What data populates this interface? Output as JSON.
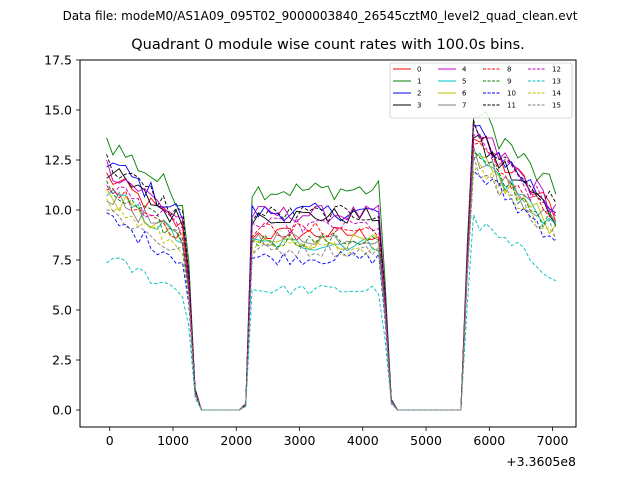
{
  "chart_data": {
    "type": "line",
    "suptitle": "Data file: modeM0/AS1A09_095T02_9000003840_26545cztM0_level2_quad_clean.evt",
    "title": "Quadrant 0 module wise count rates with 100.0s bins.",
    "xlabel": "",
    "ylabel": "",
    "x_offset_label": "+3.3605e8",
    "xlim": [
      -470,
      7370
    ],
    "ylim": [
      -0.85,
      17.5
    ],
    "xticks": [
      0,
      1000,
      2000,
      3000,
      4000,
      5000,
      6000,
      7000
    ],
    "xtick_labels": [
      "0",
      "1000",
      "2000",
      "3000",
      "4000",
      "5000",
      "6000",
      "7000"
    ],
    "yticks": [
      0,
      2.5,
      5,
      7.5,
      10,
      12.5,
      15,
      17.5
    ],
    "ytick_labels": [
      "0.0",
      "2.5",
      "5.0",
      "7.5",
      "10.0",
      "12.5",
      "15.0",
      "17.5"
    ],
    "legend_position": "top-right",
    "bin_s": 100,
    "x_start": -50,
    "n_bins": 72,
    "series": [
      {
        "name": "0",
        "color": "#ff0000",
        "dash": "solid",
        "levels": [
          11.7,
          8.8,
          8.8,
          13.7
        ]
      },
      {
        "name": "1",
        "color": "#008000",
        "dash": "solid",
        "levels": [
          13.5,
          11.0,
          11.0,
          15.0
        ]
      },
      {
        "name": "2",
        "color": "#0000ff",
        "dash": "solid",
        "levels": [
          12.5,
          9.9,
          9.9,
          14.0
        ]
      },
      {
        "name": "3",
        "color": "#000000",
        "dash": "solid",
        "levels": [
          12.0,
          9.7,
          9.7,
          13.5
        ]
      },
      {
        "name": "4",
        "color": "#c000c0",
        "dash": "solid",
        "levels": [
          12.2,
          9.8,
          9.8,
          14.0
        ]
      },
      {
        "name": "5",
        "color": "#00bfbf",
        "dash": "solid",
        "levels": [
          10.9,
          8.3,
          8.3,
          12.8
        ]
      },
      {
        "name": "6",
        "color": "#bfbf00",
        "dash": "solid",
        "levels": [
          10.8,
          8.4,
          8.4,
          12.6
        ]
      },
      {
        "name": "7",
        "color": "#808080",
        "dash": "solid",
        "levels": [
          10.8,
          8.6,
          8.6,
          12.8
        ]
      },
      {
        "name": "8",
        "color": "#ff0000",
        "dash": "dashed",
        "levels": [
          11.3,
          9.0,
          9.0,
          13.2
        ]
      },
      {
        "name": "9",
        "color": "#008000",
        "dash": "dashed",
        "levels": [
          11.0,
          8.5,
          8.5,
          12.7
        ]
      },
      {
        "name": "10",
        "color": "#0000ff",
        "dash": "dashed",
        "levels": [
          9.6,
          7.6,
          7.6,
          12.0
        ]
      },
      {
        "name": "11",
        "color": "#000000",
        "dash": "dashed",
        "levels": [
          12.4,
          9.8,
          9.8,
          14.0
        ]
      },
      {
        "name": "12",
        "color": "#c000c0",
        "dash": "dashed",
        "levels": [
          11.4,
          9.2,
          9.2,
          13.5
        ]
      },
      {
        "name": "13",
        "color": "#00bfbf",
        "dash": "dashed",
        "levels": [
          7.6,
          6.0,
          6.0,
          9.4
        ]
      },
      {
        "name": "14",
        "color": "#bfbf00",
        "dash": "dashed",
        "levels": [
          10.3,
          8.1,
          8.1,
          12.3
        ]
      },
      {
        "name": "15",
        "color": "#808080",
        "dash": "dashed",
        "levels": [
          10.0,
          8.0,
          8.0,
          12.3
        ]
      }
    ]
  }
}
